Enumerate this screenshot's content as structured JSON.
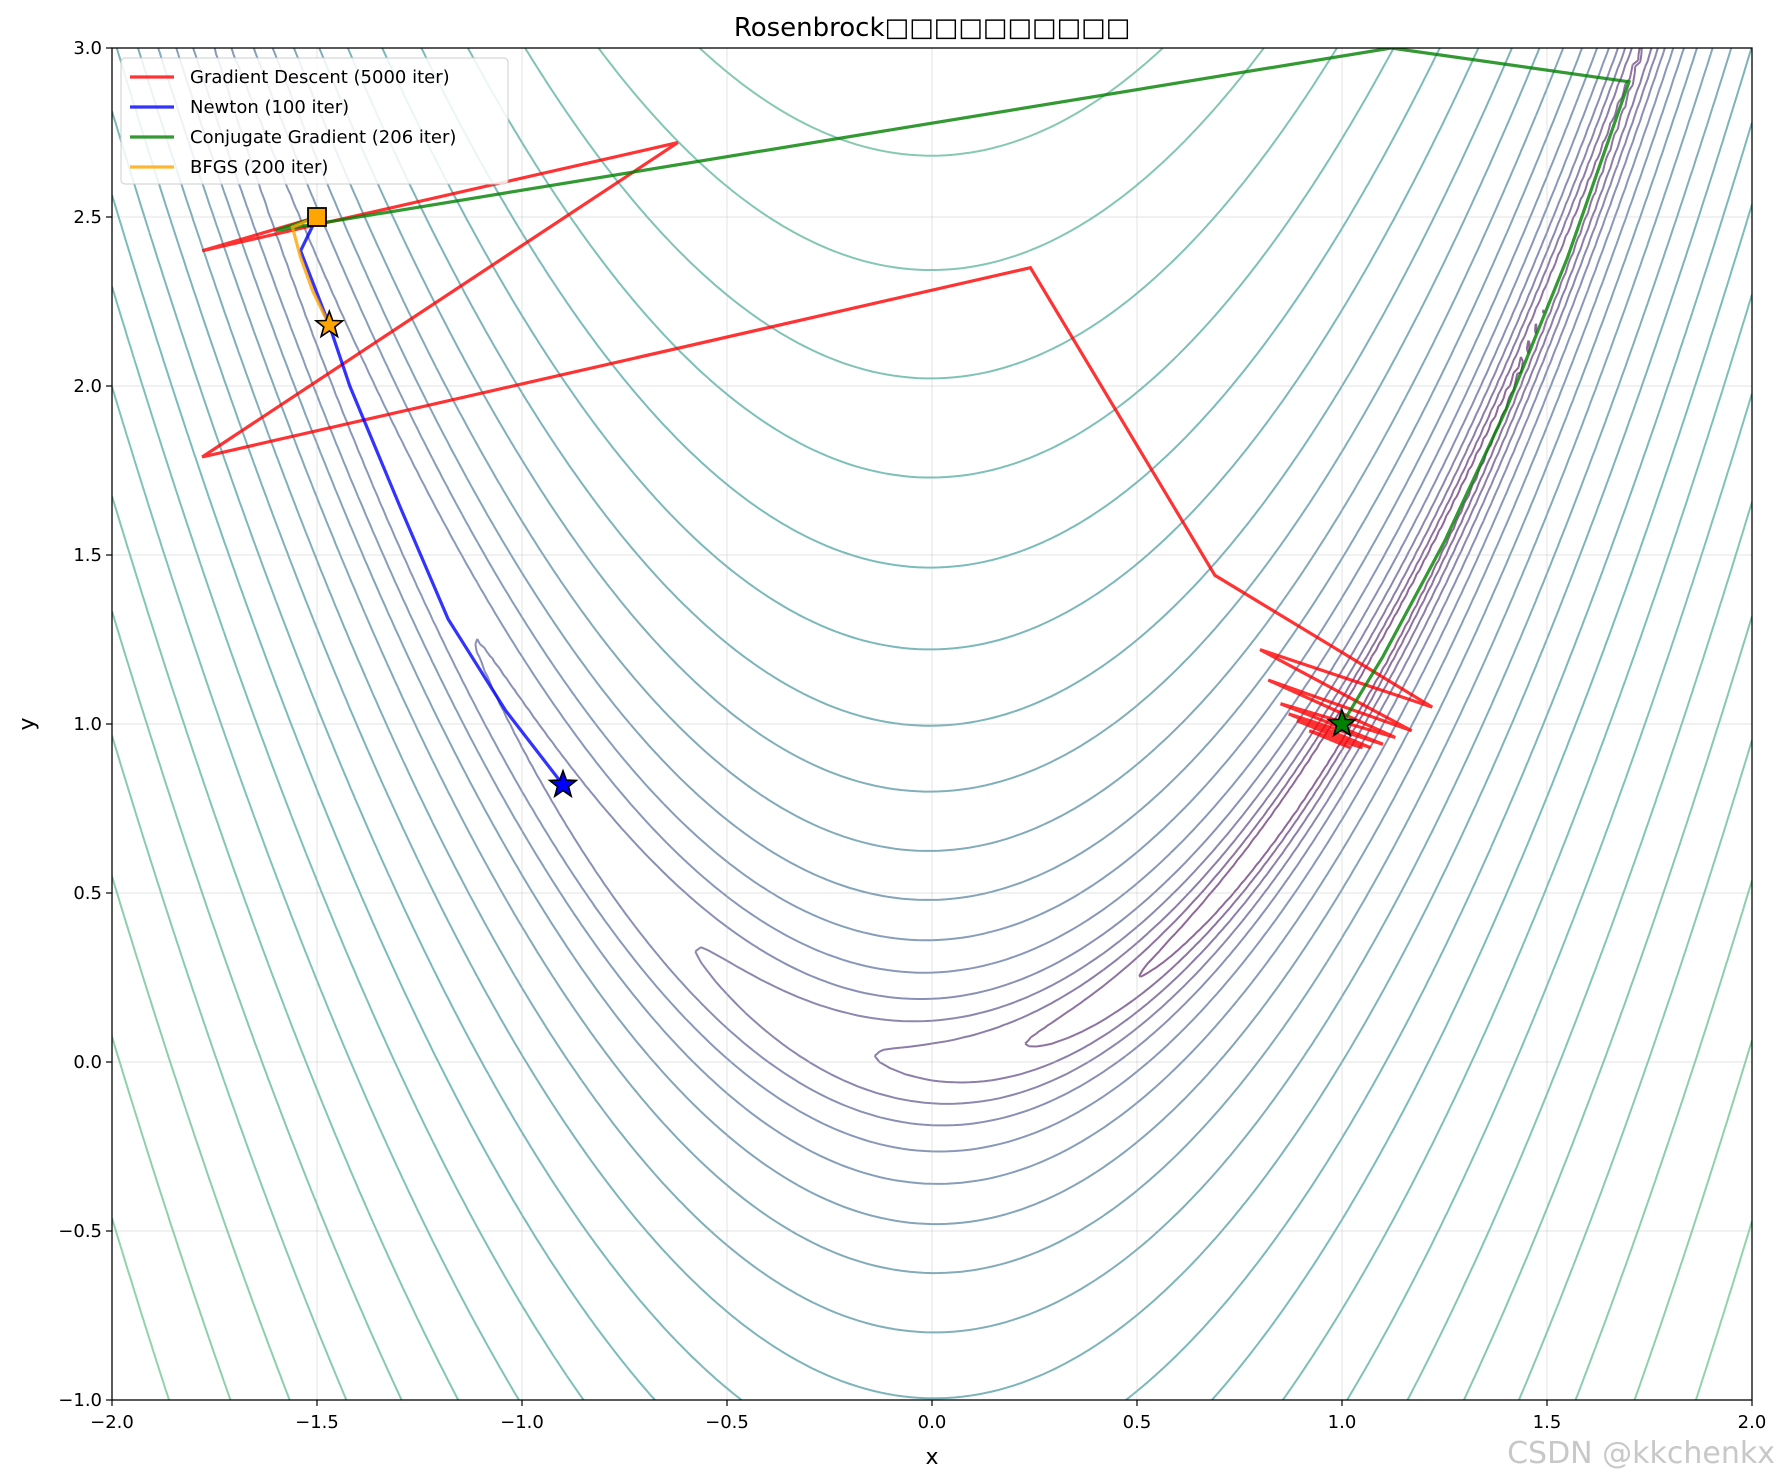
{
  "chart_data": {
    "type": "line",
    "title": "Rosenbrock□□□□□□□□□□",
    "xlabel": "x",
    "ylabel": "y",
    "xlim": [
      -2.0,
      2.0
    ],
    "ylim": [
      -1.0,
      3.0
    ],
    "x_ticks": [
      "−2.0",
      "−1.5",
      "−1.0",
      "−0.5",
      "0.0",
      "0.5",
      "1.0",
      "1.5",
      "2.0"
    ],
    "y_ticks": [
      "−1.0",
      "−0.5",
      "0.0",
      "0.5",
      "1.0",
      "1.5",
      "2.0",
      "2.5",
      "3.0"
    ],
    "grid": true,
    "legend_position": "top-left",
    "background_contours": "Rosenbrock function f(x,y)=(1-x)^2+100(y-x^2)^2, log-spaced contour levels, viridis colormap",
    "contour_levels": [
      0.25,
      0.6,
      1.3,
      2.5,
      4.5,
      8,
      14,
      24,
      40,
      65,
      100,
      150,
      215,
      300,
      410,
      550,
      720,
      930,
      1200,
      1550,
      2000,
      2600,
      3400,
      4500
    ],
    "series": [
      {
        "name": "Gradient Descent (5000 iter)",
        "color": "#ff0000",
        "x": [
          -1.5,
          -1.78,
          -0.62,
          -1.78,
          0.24,
          0.69,
          1.22,
          0.8,
          1.17,
          0.82,
          1.13,
          0.85,
          1.1,
          0.87,
          1.07,
          0.89,
          1.05,
          0.92,
          1.02,
          0.96,
          1.0
        ],
        "y": [
          2.5,
          2.4,
          2.72,
          1.79,
          2.35,
          1.44,
          1.05,
          1.22,
          0.98,
          1.13,
          0.96,
          1.06,
          0.94,
          1.03,
          0.93,
          1.01,
          0.93,
          0.98,
          0.93,
          0.96,
          1.0
        ]
      },
      {
        "name": "Newton (100 iter)",
        "color": "#0000ff",
        "x": [
          -1.5,
          -1.54,
          -1.47,
          -1.42,
          -1.3,
          -1.18,
          -1.04,
          -0.9
        ],
        "y": [
          2.5,
          2.4,
          2.18,
          2.0,
          1.65,
          1.31,
          1.04,
          0.82
        ]
      },
      {
        "name": "Conjugate Gradient (206 iter)",
        "color": "#008000",
        "x": [
          -1.5,
          -1.6,
          1.12,
          1.7,
          1.55,
          1.4,
          1.25,
          1.1,
          1.0
        ],
        "y": [
          2.5,
          2.46,
          3.0,
          2.9,
          2.38,
          1.93,
          1.54,
          1.2,
          1.0
        ]
      },
      {
        "name": "BFGS (200 iter)",
        "color": "#ffa500",
        "x": [
          -1.5,
          -1.56,
          -1.54,
          -1.51,
          -1.47
        ],
        "y": [
          2.5,
          2.47,
          2.38,
          2.28,
          2.18
        ]
      }
    ],
    "markers": [
      {
        "type": "start",
        "shape": "square",
        "x": -1.5,
        "y": 2.5,
        "color": "#ffa500"
      },
      {
        "type": "end",
        "shape": "star",
        "x": -1.47,
        "y": 2.18,
        "color": "#ffa500"
      },
      {
        "type": "end",
        "shape": "star",
        "x": -0.9,
        "y": 0.82,
        "color": "#0000ff"
      },
      {
        "type": "end",
        "shape": "star",
        "x": 1.0,
        "y": 1.0,
        "color": "#008000"
      }
    ]
  },
  "watermark": "CSDN @kkchenkx"
}
